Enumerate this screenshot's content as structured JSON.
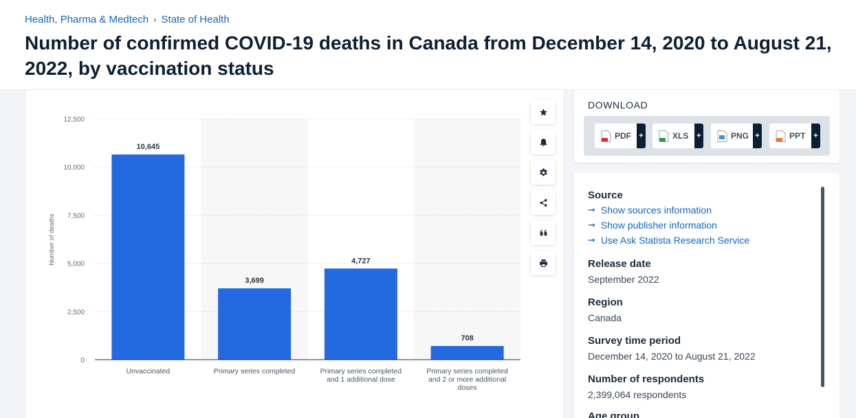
{
  "breadcrumb": {
    "category": "Health, Pharma & Medtech",
    "subcategory": "State of Health"
  },
  "title": "Number of confirmed COVID-19 deaths in Canada from December 14, 2020 to August 21, 2022, by vaccination status",
  "chart_data": {
    "type": "bar",
    "categories": [
      "Unvaccinated",
      "Primary series completed",
      "Primary series completed and 1 additional dose",
      "Primary series completed and 2 or more additional doses"
    ],
    "category_lines": [
      [
        "Unvaccinated"
      ],
      [
        "Primary series completed"
      ],
      [
        "Primary series completed",
        "and 1 additional dose"
      ],
      [
        "Primary series completed",
        "and 2 or more additional",
        "doses"
      ]
    ],
    "values": [
      10645,
      3699,
      4727,
      708
    ],
    "value_labels": [
      "10,645",
      "3,699",
      "4,727",
      "708"
    ],
    "ylabel": "Number of deaths",
    "xlabel": "",
    "ylim": [
      0,
      12500
    ],
    "yticks": [
      0,
      2500,
      5000,
      7500,
      10000,
      12500
    ],
    "ytick_labels": [
      "0",
      "2,500",
      "5,000",
      "7,500",
      "10,000",
      "12,500"
    ],
    "grid": true,
    "bar_color": "#2369e0",
    "band_color": "#f7f7f7"
  },
  "tools": [
    "star-icon",
    "bell-icon",
    "gear-icon",
    "share-icon",
    "quote-icon",
    "print-icon"
  ],
  "download": {
    "title": "DOWNLOAD",
    "buttons": [
      {
        "label": "PDF",
        "plus": "+",
        "color": "#d32f2f"
      },
      {
        "label": "XLS",
        "plus": "+",
        "color": "#2e9b3f"
      },
      {
        "label": "PNG",
        "plus": "+",
        "color": "#4b8fd1"
      },
      {
        "label": "PPT",
        "plus": "+",
        "color": "#e8792b"
      }
    ]
  },
  "info": {
    "source_heading": "Source",
    "links": [
      "Show sources information",
      "Show publisher information",
      "Use Ask Statista Research Service"
    ],
    "link_arrow": "➞",
    "release_heading": "Release date",
    "release_value": "September 2022",
    "region_heading": "Region",
    "region_value": "Canada",
    "period_heading": "Survey time period",
    "period_value": "December 14, 2020 to August 21, 2022",
    "respondents_heading": "Number of respondents",
    "respondents_value": "2,399,064 respondents",
    "age_heading": "Age group"
  },
  "colors": {
    "accent": "#1565c0",
    "bar": "#2369e0",
    "dark": "#0d1f33"
  }
}
